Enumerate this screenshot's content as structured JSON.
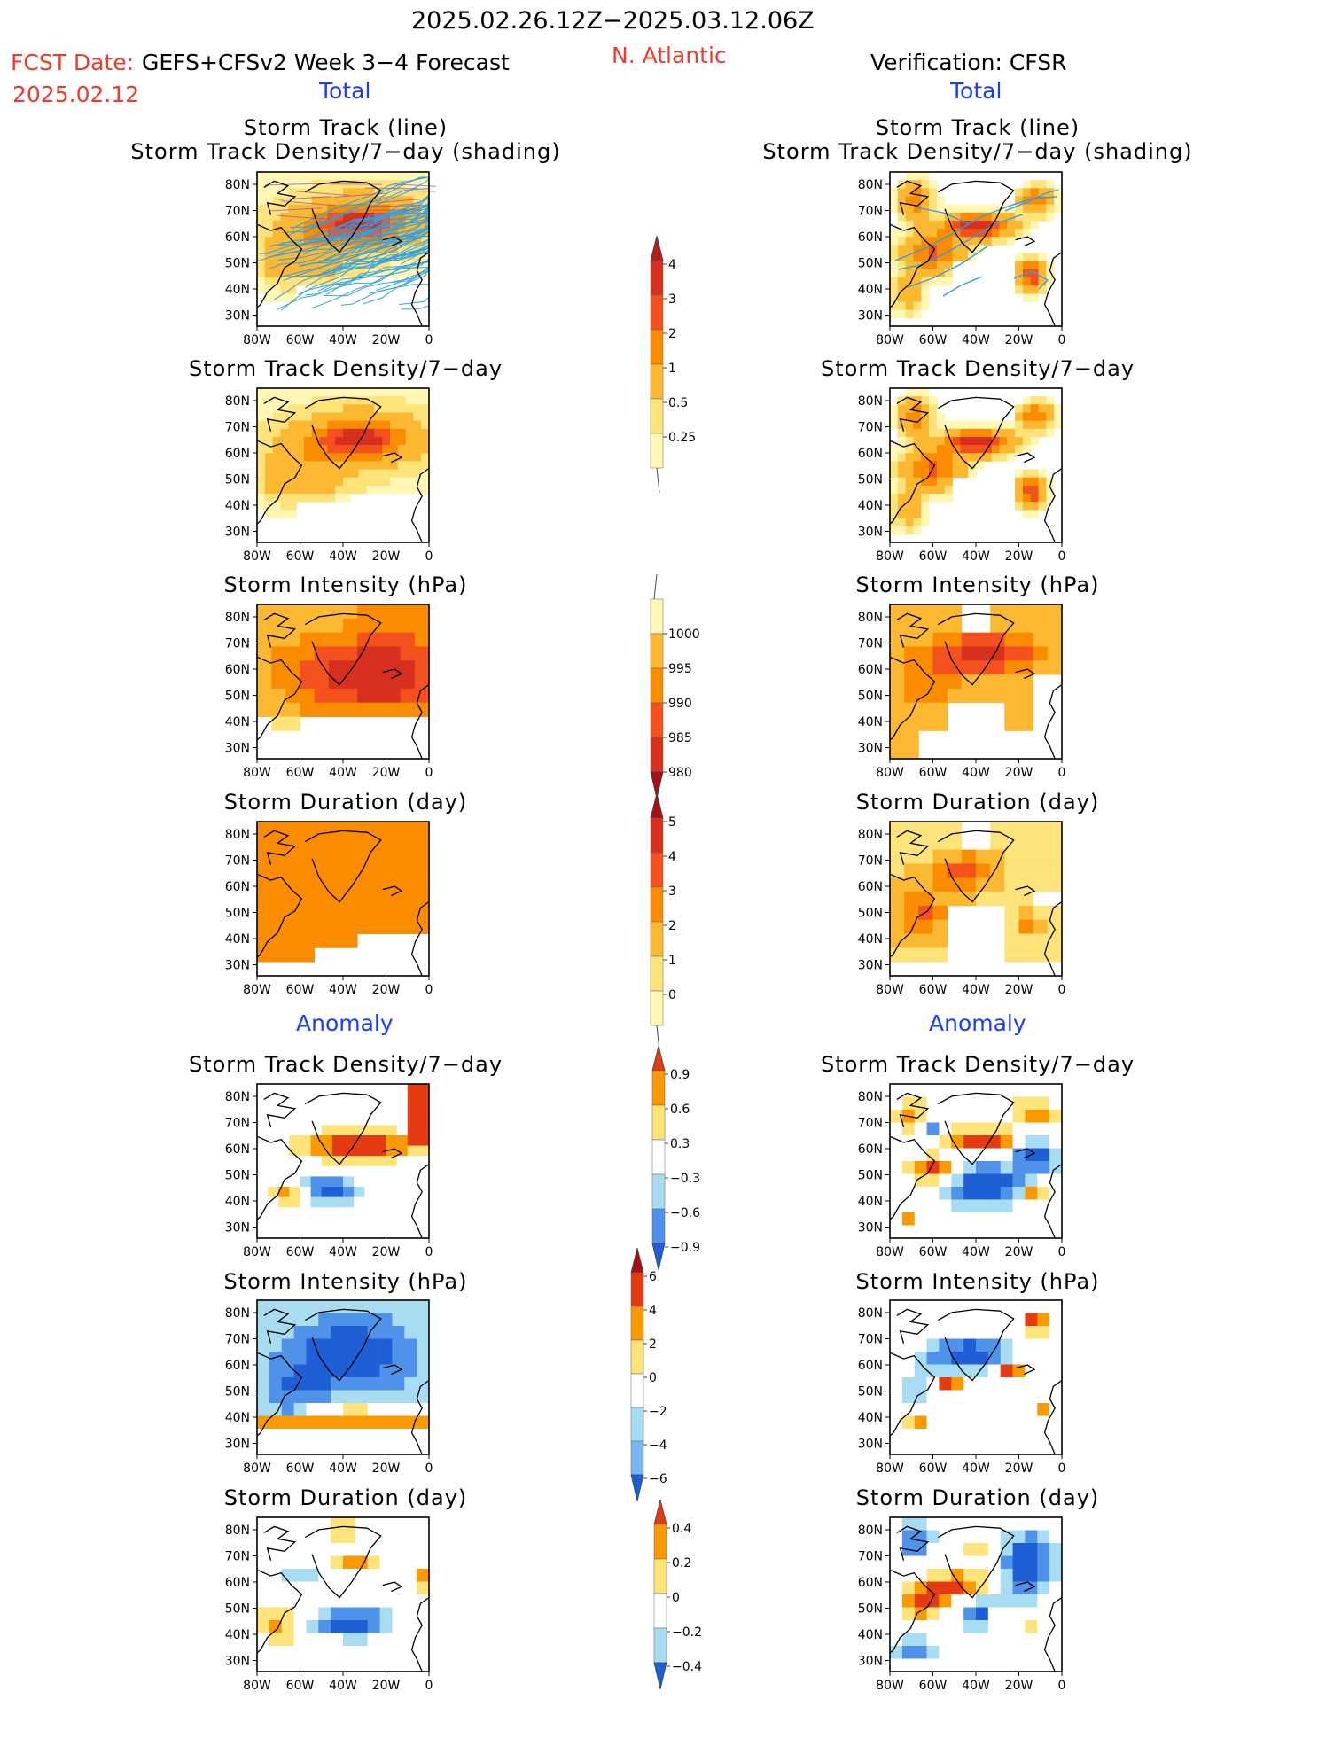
{
  "header": {
    "period": "2025.02.26.12Z−2025.03.12.06Z",
    "fcst_label": "FCST Date:",
    "fcst_date": "2025.02.12",
    "model": "GEFS+CFSv2 Week 3−4 Forecast",
    "region": "N. Atlantic",
    "verification": "Verification: CFSR"
  },
  "sections": {
    "total_label": "Total",
    "anomaly_label": "Anomaly"
  },
  "panel_titles": {
    "track_line": "Storm Track (line)",
    "track_density_shading": "Storm Track Density/7−day (shading)",
    "track_density": "Storm Track Density/7−day",
    "intensity": "Storm Intensity (hPa)",
    "duration": "Storm Duration (day)"
  },
  "axes": {
    "lat_labels": [
      "80N",
      "70N",
      "60N",
      "50N",
      "40N",
      "30N"
    ],
    "lon_labels": [
      "80W",
      "60W",
      "40W",
      "20W",
      "0"
    ]
  },
  "colorbars": {
    "track_density_total": [
      "4",
      "3",
      "2",
      "1",
      "0.5",
      "0.25"
    ],
    "intensity_total": [
      "1000",
      "995",
      "990",
      "985",
      "980"
    ],
    "duration_total": [
      "5",
      "4",
      "3",
      "2",
      "1",
      "0"
    ],
    "track_density_anom": [
      "0.9",
      "0.6",
      "0.3",
      "−0.3",
      "−0.6",
      "−0.9"
    ],
    "intensity_anom": [
      "6",
      "4",
      "2",
      "0",
      "−2",
      "−4",
      "−6"
    ],
    "duration_anom": [
      "0.4",
      "0.2",
      "0",
      "−0.2",
      "−0.4"
    ]
  },
  "colors": {
    "title_red": "#ef3b2c",
    "label_blue": "#1a3cff",
    "track_line": "#2fa0e6",
    "warm_scale": [
      "#fff7b3",
      "#fde37a",
      "#fdb832",
      "#fb8c00",
      "#f4511e",
      "#d7301f",
      "#a50f15"
    ],
    "anom_scale": [
      "#1f5fd6",
      "#4f92ea",
      "#a8dcf2",
      "#ffffff",
      "#fde37a",
      "#fb9a00",
      "#e53b13"
    ]
  }
}
